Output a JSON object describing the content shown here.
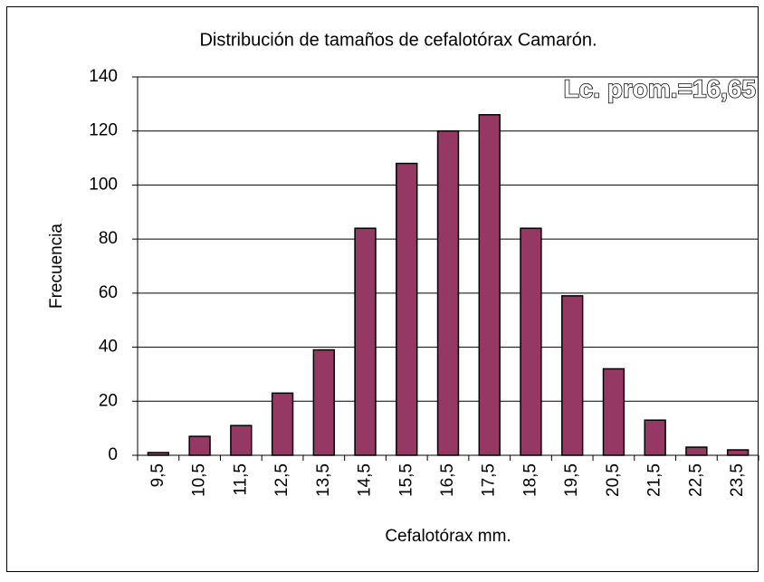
{
  "chart_data": {
    "type": "bar",
    "title": "Distribución de tamaños de cefalotórax Camarón.",
    "annotation": "Lc. prom.=16,65",
    "x_label": "Cefalotórax mm.",
    "y_label": "Frecuencia",
    "categories": [
      "9,5",
      "10,5",
      "11,5",
      "12,5",
      "13,5",
      "14,5",
      "15,5",
      "16,5",
      "17,5",
      "18,5",
      "19,5",
      "20,5",
      "21,5",
      "22,5",
      "23,5"
    ],
    "values": [
      1,
      7,
      11,
      23,
      39,
      84,
      108,
      120,
      126,
      84,
      59,
      32,
      13,
      3,
      2
    ],
    "color": "#953864",
    "ylim": [
      0,
      140
    ],
    "yticks": [
      0,
      20,
      40,
      60,
      80,
      100,
      120,
      140
    ],
    "grid": true
  }
}
